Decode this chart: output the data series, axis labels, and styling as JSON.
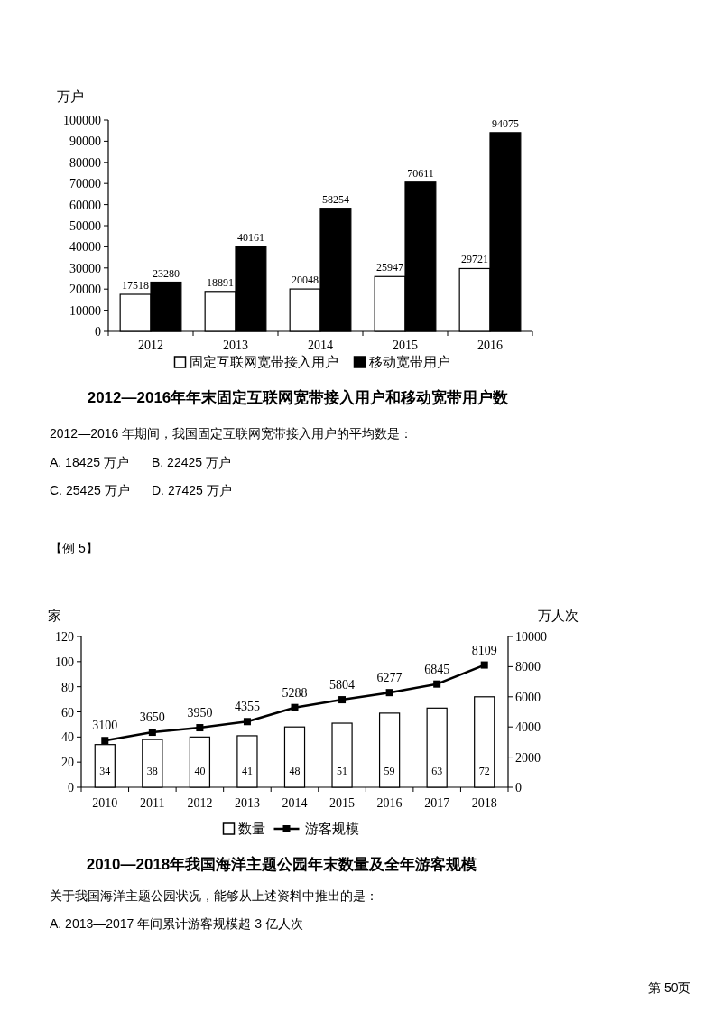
{
  "chart_data": [
    {
      "type": "bar",
      "title": "2012—2016年年末固定互联网宽带接入用户和移动宽带用户数",
      "ylabel": "万户",
      "categories": [
        "2012",
        "2013",
        "2014",
        "2015",
        "2016"
      ],
      "series": [
        {
          "name": "固定互联网宽带接入用户",
          "color": "#ffffff",
          "values": [
            17518,
            18891,
            20048,
            25947,
            29721
          ]
        },
        {
          "name": "移动宽带用户",
          "color": "#000000",
          "values": [
            23280,
            40161,
            58254,
            70611,
            94075
          ]
        }
      ],
      "ylim": [
        0,
        100000
      ],
      "yticks": [
        0,
        10000,
        20000,
        30000,
        40000,
        50000,
        60000,
        70000,
        80000,
        90000,
        100000
      ],
      "data_labels": true,
      "legend": "bottom",
      "annotations": [
        "2012—2016 年期间，我国固定互联网宽带接入用户的平均数是：",
        "A. 18425 万户",
        "B. 22425 万户",
        "C. 25425 万户",
        "D. 27425 万户"
      ]
    },
    {
      "type": "bar",
      "title": "2010—2018年我国海洋主题公园年末数量及全年游客规模",
      "ylabel": "家",
      "y2label": "万人次",
      "categories": [
        "2010",
        "2011",
        "2012",
        "2013",
        "2014",
        "2015",
        "2016",
        "2017",
        "2018"
      ],
      "series": [
        {
          "name": "数量",
          "color": "#ffffff",
          "values": [
            34,
            38,
            40,
            41,
            48,
            51,
            59,
            63,
            72
          ]
        },
        {
          "name": "游客规模",
          "type": "line",
          "axis": "y2",
          "color": "#000000",
          "values": [
            3100,
            3650,
            3950,
            4355,
            5288,
            5804,
            6277,
            6845,
            8109
          ]
        }
      ],
      "ylim": [
        0,
        120
      ],
      "yticks": [
        0,
        20,
        40,
        60,
        80,
        100,
        120
      ],
      "y2lim": [
        0,
        10000
      ],
      "y2ticks": [
        0,
        2000,
        4000,
        6000,
        8000,
        10000
      ],
      "marker": "square",
      "data_labels": true,
      "legend": "bottom",
      "annotations": [
        "【例 5】",
        "关于我国海洋主题公园状况，能够从上述资料中推出的是：",
        "A. 2013—2017 年间累计游客规模超 3 亿人次",
        "第 50页"
      ]
    }
  ]
}
